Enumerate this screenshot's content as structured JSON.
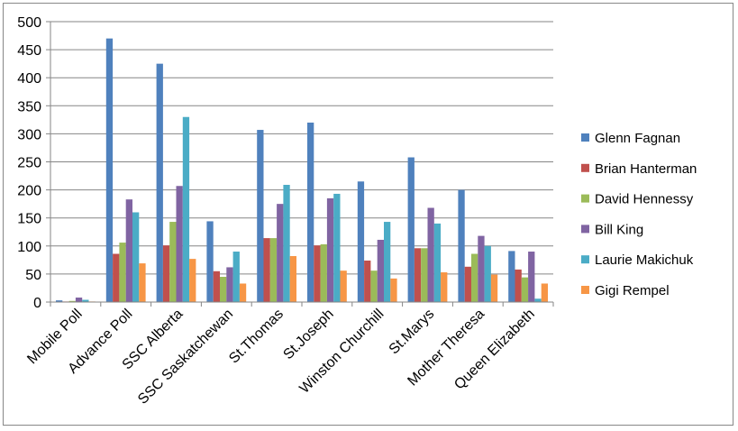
{
  "chart_data": {
    "type": "bar",
    "title": "",
    "xlabel": "",
    "ylabel": "",
    "ylim": [
      0,
      500
    ],
    "yticks": [
      0,
      50,
      100,
      150,
      200,
      250,
      300,
      350,
      400,
      450,
      500
    ],
    "grid": true,
    "legend_position": "right",
    "categories": [
      "Mobile Poll",
      "Advance Poll",
      "SSC Alberta",
      "SSC Saskatchewan",
      "St.Thomas",
      "St.Joseph",
      "Winston Churchill",
      "St.Marys",
      "Mother Theresa",
      "Queen Elizabeth"
    ],
    "series": [
      {
        "name": "Glenn Fagnan",
        "color": "#4F81BD",
        "values": [
          3,
          470,
          425,
          144,
          307,
          320,
          215,
          258,
          200,
          91
        ]
      },
      {
        "name": "Brian Hanterman",
        "color": "#C0504D",
        "values": [
          1,
          86,
          101,
          55,
          114,
          101,
          74,
          96,
          63,
          58
        ]
      },
      {
        "name": "David Hennessy",
        "color": "#9BBB59",
        "values": [
          2,
          106,
          143,
          45,
          114,
          103,
          56,
          96,
          86,
          44
        ]
      },
      {
        "name": "Bill King",
        "color": "#8064A2",
        "values": [
          8,
          183,
          207,
          62,
          175,
          185,
          111,
          168,
          118,
          90
        ]
      },
      {
        "name": "Laurie Makichuk",
        "color": "#4BACC6",
        "values": [
          4,
          160,
          330,
          90,
          209,
          193,
          143,
          140,
          100,
          6
        ]
      },
      {
        "name": "Gigi Rempel",
        "color": "#F79646",
        "values": [
          1,
          69,
          77,
          33,
          82,
          56,
          42,
          53,
          49,
          33
        ]
      }
    ]
  }
}
